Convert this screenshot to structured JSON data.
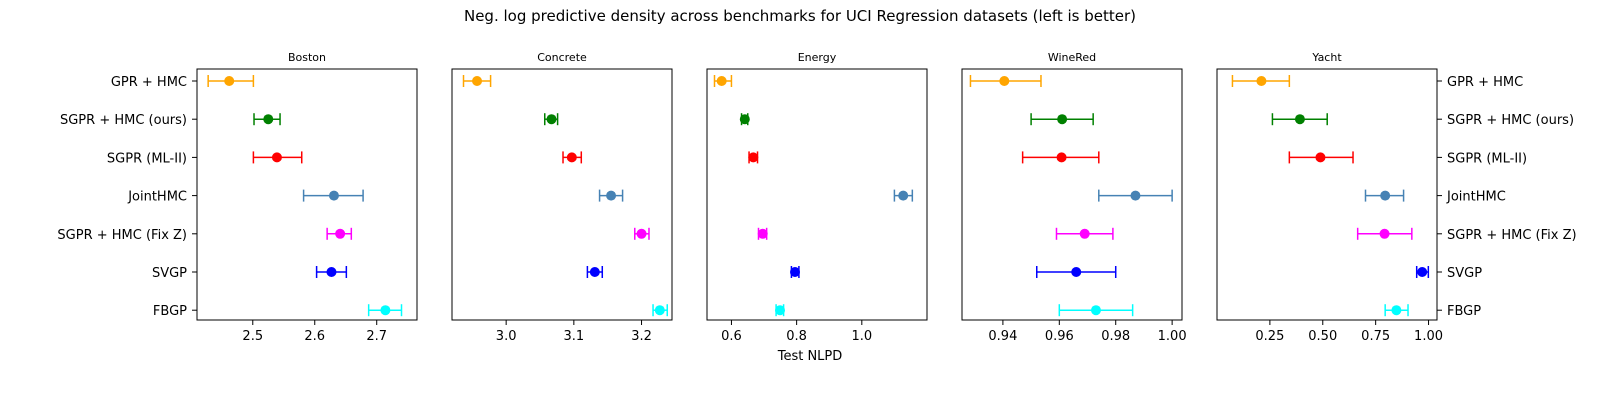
{
  "figure": {
    "suptitle": "Neg. log predictive density across benchmarks for UCI Regression datasets (left is better)"
  },
  "chart_data": {
    "type": "scatter",
    "subtype": "errorbar-forest",
    "title": "Neg. log predictive density across benchmarks for UCI Regression datasets (left is better)",
    "xlabel": "Test NLPD",
    "methods": [
      "GPR + HMC",
      "SGPR + HMC (ours)",
      "SGPR (ML-II)",
      "JointHMC",
      "SGPR + HMC (Fix Z)",
      "SVGP",
      "FBGP"
    ],
    "colors": {
      "GPR + HMC": "#ffa500",
      "SGPR + HMC (ours)": "#008000",
      "SGPR (ML-II)": "#ff0000",
      "JointHMC": "#4682b4",
      "SGPR + HMC (Fix Z)": "#ff00ff",
      "SVGP": "#0000ff",
      "FBGP": "#00ffff"
    },
    "grid": false,
    "panels": [
      {
        "title": "Boston",
        "xlim": [
          2.41,
          2.765
        ],
        "xticks": [
          2.5,
          2.6,
          2.7
        ],
        "xtick_labels": [
          "2.5",
          "2.6",
          "2.7"
        ],
        "points": [
          {
            "method": "GPR + HMC",
            "mean": 2.462,
            "lo": 2.428,
            "hi": 2.501
          },
          {
            "method": "SGPR + HMC (ours)",
            "mean": 2.525,
            "lo": 2.502,
            "hi": 2.544
          },
          {
            "method": "SGPR (ML-II)",
            "mean": 2.539,
            "lo": 2.501,
            "hi": 2.579
          },
          {
            "method": "JointHMC",
            "mean": 2.631,
            "lo": 2.582,
            "hi": 2.678
          },
          {
            "method": "SGPR + HMC (Fix Z)",
            "mean": 2.641,
            "lo": 2.62,
            "hi": 2.659
          },
          {
            "method": "SVGP",
            "mean": 2.627,
            "lo": 2.603,
            "hi": 2.651
          },
          {
            "method": "FBGP",
            "mean": 2.714,
            "lo": 2.687,
            "hi": 2.74
          }
        ]
      },
      {
        "title": "Concrete",
        "xlim": [
          2.92,
          3.245
        ],
        "xticks": [
          3.0,
          3.1,
          3.2
        ],
        "xtick_labels": [
          "3.0",
          "3.1",
          "3.2"
        ],
        "points": [
          {
            "method": "GPR + HMC",
            "mean": 2.957,
            "lo": 2.937,
            "hi": 2.977
          },
          {
            "method": "SGPR + HMC (ours)",
            "mean": 3.067,
            "lo": 3.057,
            "hi": 3.076
          },
          {
            "method": "SGPR (ML-II)",
            "mean": 3.097,
            "lo": 3.084,
            "hi": 3.111
          },
          {
            "method": "JointHMC",
            "mean": 3.155,
            "lo": 3.138,
            "hi": 3.172
          },
          {
            "method": "SGPR + HMC (Fix Z)",
            "mean": 3.2,
            "lo": 3.19,
            "hi": 3.211
          },
          {
            "method": "SVGP",
            "mean": 3.131,
            "lo": 3.12,
            "hi": 3.142
          },
          {
            "method": "FBGP",
            "mean": 3.227,
            "lo": 3.217,
            "hi": 3.238
          }
        ]
      },
      {
        "title": "Energy",
        "xlim": [
          0.525,
          1.2
        ],
        "xticks": [
          0.6,
          0.8,
          1.0
        ],
        "xtick_labels": [
          "0.6",
          "0.8",
          "1.0"
        ],
        "points": [
          {
            "method": "GPR + HMC",
            "mean": 0.57,
            "lo": 0.548,
            "hi": 0.6
          },
          {
            "method": "SGPR + HMC (ours)",
            "mean": 0.641,
            "lo": 0.631,
            "hi": 0.65
          },
          {
            "method": "SGPR (ML-II)",
            "mean": 0.667,
            "lo": 0.654,
            "hi": 0.68
          },
          {
            "method": "JointHMC",
            "mean": 1.127,
            "lo": 1.1,
            "hi": 1.155
          },
          {
            "method": "SGPR + HMC (Fix Z)",
            "mean": 0.696,
            "lo": 0.683,
            "hi": 0.708
          },
          {
            "method": "SVGP",
            "mean": 0.795,
            "lo": 0.784,
            "hi": 0.807
          },
          {
            "method": "FBGP",
            "mean": 0.749,
            "lo": 0.737,
            "hi": 0.76
          }
        ]
      },
      {
        "title": "WineRed",
        "xlim": [
          0.9255,
          1.0035
        ],
        "xticks": [
          0.94,
          0.96,
          0.98,
          1.0
        ],
        "xtick_labels": [
          "0.94",
          "0.96",
          "0.98",
          "1.00"
        ],
        "points": [
          {
            "method": "GPR + HMC",
            "mean": 0.9405,
            "lo": 0.9285,
            "hi": 0.9535
          },
          {
            "method": "SGPR + HMC (ours)",
            "mean": 0.961,
            "lo": 0.95,
            "hi": 0.972
          },
          {
            "method": "SGPR (ML-II)",
            "mean": 0.9608,
            "lo": 0.947,
            "hi": 0.974
          },
          {
            "method": "JointHMC",
            "mean": 0.987,
            "lo": 0.974,
            "hi": 1.0
          },
          {
            "method": "SGPR + HMC (Fix Z)",
            "mean": 0.969,
            "lo": 0.959,
            "hi": 0.979
          },
          {
            "method": "SVGP",
            "mean": 0.966,
            "lo": 0.952,
            "hi": 0.98
          },
          {
            "method": "FBGP",
            "mean": 0.973,
            "lo": 0.96,
            "hi": 0.986
          }
        ]
      },
      {
        "title": "Yacht",
        "xlim": [
          0.0,
          1.04
        ],
        "xticks": [
          0.25,
          0.5,
          0.75,
          1.0
        ],
        "xtick_labels": [
          "0.25",
          "0.50",
          "0.75",
          "1.00"
        ],
        "points": [
          {
            "method": "GPR + HMC",
            "mean": 0.21,
            "lo": 0.073,
            "hi": 0.342
          },
          {
            "method": "SGPR + HMC (ours)",
            "mean": 0.392,
            "lo": 0.262,
            "hi": 0.521
          },
          {
            "method": "SGPR (ML-II)",
            "mean": 0.489,
            "lo": 0.342,
            "hi": 0.643
          },
          {
            "method": "JointHMC",
            "mean": 0.795,
            "lo": 0.702,
            "hi": 0.882
          },
          {
            "method": "SGPR + HMC (Fix Z)",
            "mean": 0.792,
            "lo": 0.665,
            "hi": 0.921
          },
          {
            "method": "SVGP",
            "mean": 0.97,
            "lo": 0.944,
            "hi": 0.999
          },
          {
            "method": "FBGP",
            "mean": 0.848,
            "lo": 0.795,
            "hi": 0.903
          }
        ]
      }
    ]
  }
}
